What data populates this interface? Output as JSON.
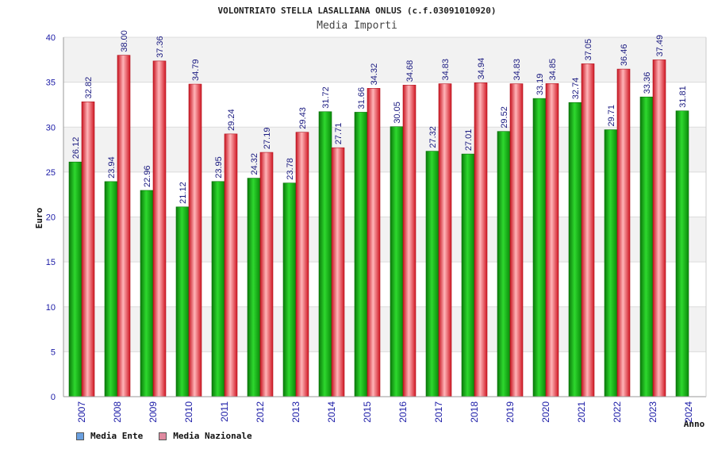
{
  "chart_data": {
    "type": "bar",
    "title": "VOLONTRIATO STELLA LASALLIANA ONLUS (c.f.03091010920)",
    "subtitle": "Media Importi",
    "xlabel": "Anno",
    "ylabel": "Euro",
    "ylim": [
      0,
      40
    ],
    "yticks": [
      0,
      5,
      10,
      15,
      20,
      25,
      30,
      35,
      40
    ],
    "grid": true,
    "legend_position": "bottom-left",
    "categories": [
      "2007",
      "2008",
      "2009",
      "2010",
      "2011",
      "2012",
      "2013",
      "2014",
      "2015",
      "2016",
      "2017",
      "2018",
      "2019",
      "2020",
      "2021",
      "2022",
      "2023",
      "2024"
    ],
    "series": [
      {
        "name": "Media Ente",
        "legend_color": "#6aa0e0",
        "bar_color": "#0a9e0a",
        "values": [
          26.12,
          23.94,
          22.96,
          21.12,
          23.95,
          24.32,
          23.78,
          31.72,
          31.66,
          30.05,
          27.32,
          27.01,
          29.52,
          33.19,
          32.74,
          29.71,
          33.36,
          31.81
        ],
        "labels": [
          "26.12",
          "23.94",
          "22.96",
          "21.12",
          "23.95",
          "24.32",
          "23.78",
          "31.72",
          "31.66",
          "30.05",
          "27.32",
          "27.01",
          "29.52",
          "33.19",
          "32.74",
          "29.71",
          "33.36",
          "31.81"
        ]
      },
      {
        "name": "Media Nazionale",
        "legend_color": "#e08aa0",
        "bar_color": "#e8222e",
        "values": [
          32.82,
          38.0,
          37.36,
          34.79,
          29.24,
          27.19,
          29.43,
          27.71,
          34.32,
          34.68,
          34.83,
          34.94,
          34.83,
          34.85,
          37.05,
          36.46,
          37.49,
          null
        ],
        "labels": [
          "32.82",
          "38.00",
          "37.36",
          "34.79",
          "29.24",
          "27.19",
          "29.43",
          "27.71",
          "34.32",
          "34.68",
          "34.83",
          "34.94",
          "34.83",
          "34.85",
          "37.05",
          "36.46",
          "37.49",
          ""
        ]
      }
    ]
  }
}
